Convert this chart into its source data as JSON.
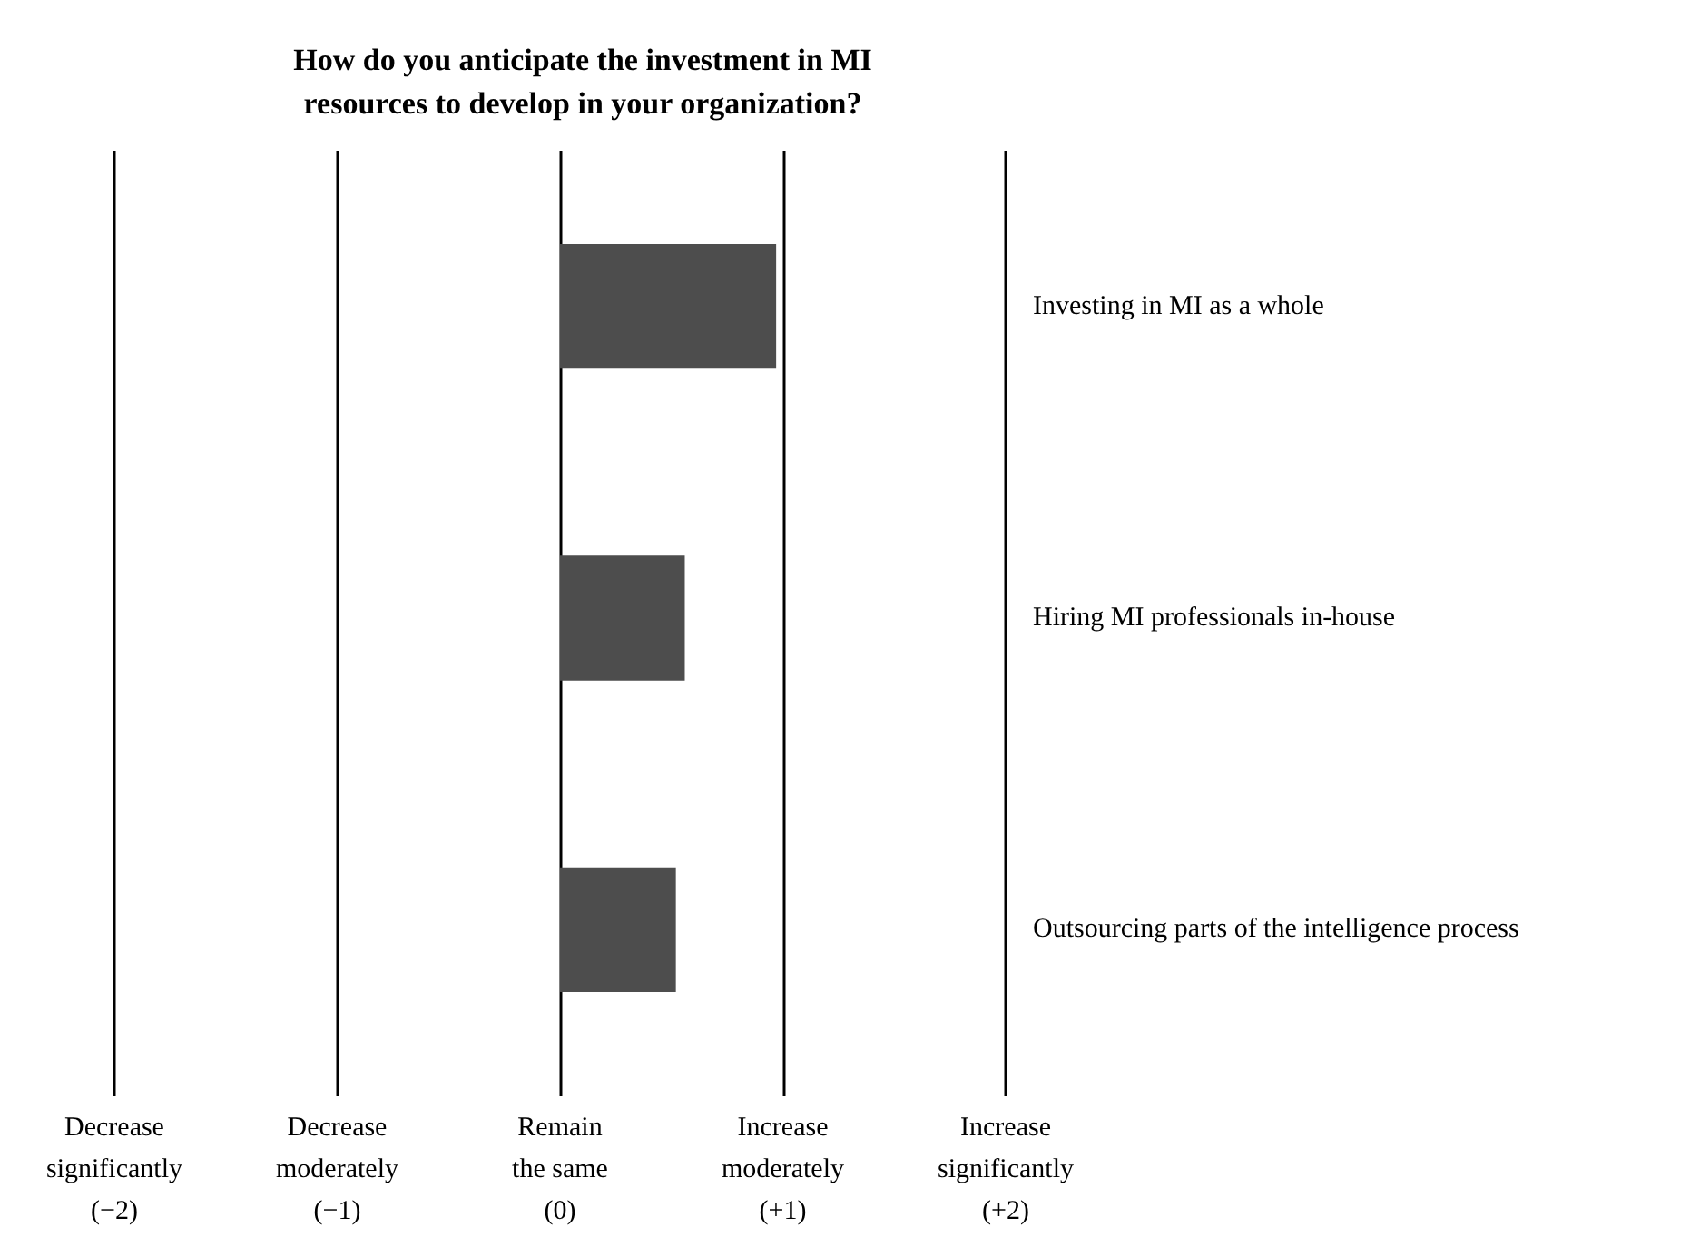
{
  "chart_data": {
    "type": "bar",
    "orientation": "horizontal",
    "title": "How do you anticipate the investment in MI\nresources to develop in your organization?",
    "categories": [
      "Investing in MI as a whole",
      "Hiring MI professionals in-house",
      "Outsourcing parts of the intelligence process"
    ],
    "values": [
      0.97,
      0.56,
      0.52
    ],
    "color": "#4d4d4d",
    "xlim": [
      -2,
      2
    ],
    "xticks": [
      {
        "value": -2,
        "label": "Decrease\nsignificantly\n(−2)"
      },
      {
        "value": -1,
        "label": "Decrease\nmoderately\n(−1)"
      },
      {
        "value": 0,
        "label": "Remain\nthe same\n(0)"
      },
      {
        "value": 1,
        "label": "Increase\nmoderately\n(+1)"
      },
      {
        "value": 2,
        "label": "Increase\nsignificantly\n(+2)"
      }
    ],
    "grid": "x"
  }
}
